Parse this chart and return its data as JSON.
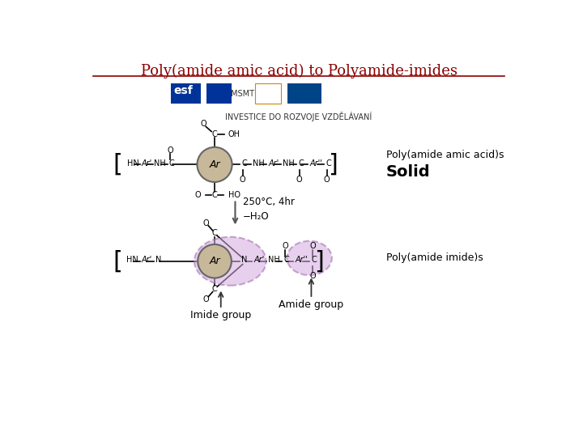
{
  "title": "Poly(amide amic acid) to Polyamide-imides",
  "title_color": "#8B0000",
  "title_fontsize": 13,
  "bg_color": "#FFFFFF",
  "separator_color": "#8B0000",
  "reaction_label": "250°C, 4hr\n−H₂O",
  "poly_amic_label1": "Poly(amide amic acid)s",
  "poly_amic_label2": "Solid",
  "poly_imide_label": "Poly(amide imide)s",
  "imide_group_label": "Imide group",
  "amide_group_label": "Amide group",
  "footer_text": "INVESTICE DO ROZVOJE VZDĚLÁVANÍ",
  "ar_circle_color": "#C8B89A",
  "ar_circle_edge": "#666666",
  "imide_ellipse_color": "#D4A8E0",
  "imide_ellipse_edge": "#9966AA",
  "amide_ellipse_color": "#D4A8E0",
  "amide_ellipse_edge": "#9966AA",
  "line_color": "#000000",
  "text_color": "#000000",
  "arrow_color": "#555555"
}
